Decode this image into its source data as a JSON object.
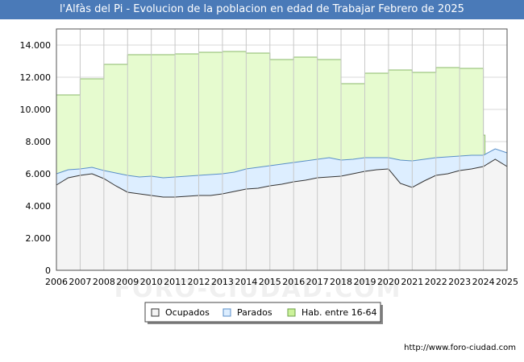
{
  "title": "l'Alfàs del Pi - Evolucion de la poblacion en edad de Trabajar Febrero de 2025",
  "footer_url": "http://www.foro-ciudad.com",
  "watermark": "FORO-CIUDAD.COM",
  "colors": {
    "title_bg": "#4a7ab8",
    "hab_fill": "#e6fbcf",
    "hab_line": "#8ab86a",
    "parados_fill": "#ddeeff",
    "parados_line": "#5a8fc8",
    "ocupados_fill": "#f4f4f4",
    "ocupados_line": "#333333"
  },
  "chart_data": {
    "type": "area",
    "x_ticks": [
      "2006",
      "2007",
      "2008",
      "2009",
      "2010",
      "2011",
      "2012",
      "2013",
      "2014",
      "2015",
      "2016",
      "2017",
      "2018",
      "2019",
      "2020",
      "2021",
      "2022",
      "2023",
      "2024",
      "2025"
    ],
    "y_ticks": [
      "0",
      "2.000",
      "4.000",
      "6.000",
      "8.000",
      "10.000",
      "12.000",
      "14.000"
    ],
    "ylim": [
      0,
      15000
    ],
    "xlim": [
      2006,
      2025
    ],
    "grid": true,
    "legend": [
      "Ocupados",
      "Parados",
      "Hab. entre 16-64"
    ],
    "legend_position": "bottom",
    "series": [
      {
        "name": "Hab. entre 16-64",
        "steps": [
          {
            "year": 2006,
            "value": 10900
          },
          {
            "year": 2007,
            "value": 11900
          },
          {
            "year": 2008,
            "value": 12800
          },
          {
            "year": 2009,
            "value": 13400
          },
          {
            "year": 2010,
            "value": 13400
          },
          {
            "year": 2011,
            "value": 13450
          },
          {
            "year": 2012,
            "value": 13550
          },
          {
            "year": 2013,
            "value": 13600
          },
          {
            "year": 2014,
            "value": 13500
          },
          {
            "year": 2015,
            "value": 13100
          },
          {
            "year": 2016,
            "value": 13250
          },
          {
            "year": 2017,
            "value": 13100
          },
          {
            "year": 2018,
            "value": 11600
          },
          {
            "year": 2019,
            "value": 12250
          },
          {
            "year": 2020,
            "value": 12450
          },
          {
            "year": 2021,
            "value": 12300
          },
          {
            "year": 2022,
            "value": 12600
          },
          {
            "year": 2023,
            "value": 12550
          },
          {
            "year": 2024,
            "value": 8400
          }
        ]
      },
      {
        "name": "Parados",
        "x": [
          2006.0,
          2006.5,
          2007.0,
          2007.5,
          2008.0,
          2008.5,
          2009.0,
          2009.5,
          2010.0,
          2010.5,
          2011.0,
          2011.5,
          2012.0,
          2012.5,
          2013.0,
          2013.5,
          2014.0,
          2014.5,
          2015.0,
          2015.5,
          2016.0,
          2016.5,
          2017.0,
          2017.5,
          2018.0,
          2018.5,
          2019.0,
          2019.5,
          2020.0,
          2020.5,
          2021.0,
          2021.5,
          2022.0,
          2022.5,
          2023.0,
          2023.5,
          2024.0,
          2024.5,
          2025.0
        ],
        "values": [
          6000,
          6250,
          6300,
          6400,
          6200,
          6050,
          5900,
          5800,
          5850,
          5750,
          5800,
          5850,
          5900,
          5950,
          6000,
          6100,
          6300,
          6400,
          6500,
          6600,
          6700,
          6800,
          6900,
          7000,
          6850,
          6900,
          7000,
          7000,
          7000,
          6850,
          6800,
          6900,
          7000,
          7050,
          7100,
          7150,
          7150,
          7550,
          7300
        ]
      },
      {
        "name": "Ocupados",
        "x": [
          2006.0,
          2006.5,
          2007.0,
          2007.5,
          2008.0,
          2008.5,
          2009.0,
          2009.5,
          2010.0,
          2010.5,
          2011.0,
          2011.5,
          2012.0,
          2012.5,
          2013.0,
          2013.5,
          2014.0,
          2014.5,
          2015.0,
          2015.5,
          2016.0,
          2016.5,
          2017.0,
          2017.5,
          2018.0,
          2018.5,
          2019.0,
          2019.5,
          2020.0,
          2020.5,
          2021.0,
          2021.5,
          2022.0,
          2022.5,
          2023.0,
          2023.5,
          2024.0,
          2024.5,
          2025.0
        ],
        "values": [
          5300,
          5750,
          5900,
          6000,
          5700,
          5250,
          4850,
          4750,
          4650,
          4550,
          4550,
          4600,
          4650,
          4650,
          4750,
          4900,
          5050,
          5100,
          5250,
          5350,
          5500,
          5600,
          5750,
          5800,
          5850,
          6000,
          6150,
          6250,
          6300,
          5400,
          5150,
          5550,
          5900,
          6000,
          6200,
          6300,
          6450,
          6900,
          6450
        ]
      }
    ]
  }
}
